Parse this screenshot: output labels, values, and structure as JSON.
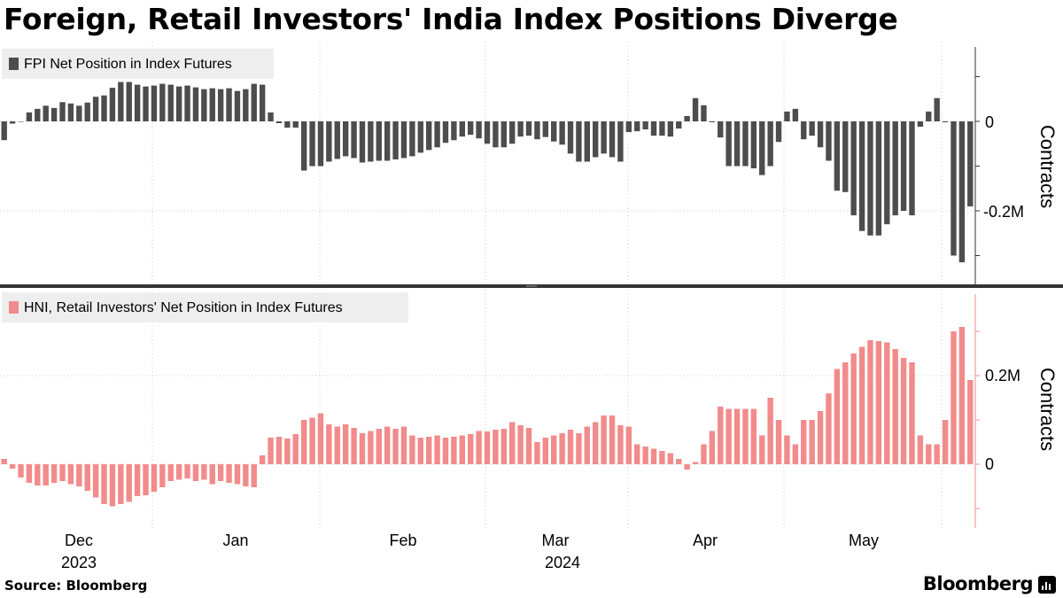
{
  "title": "Foreign, Retail Investors' India Index Positions Diverge",
  "source": "Source: Bloomberg",
  "brand": "Bloomberg",
  "colors": {
    "fpi": "#4d4d4d",
    "hni": "#f28b8b",
    "divider": "#333333",
    "grid": "#cccccc"
  },
  "chart_data": [
    {
      "type": "bar",
      "title": "FPI Net Position in Index Futures",
      "ylabel": "Contracts",
      "ylim": [
        -0.32,
        0.16
      ],
      "yticks": [
        0,
        -0.2
      ],
      "ytick_labels": [
        "0",
        "-0.2M"
      ],
      "units": "million contracts",
      "xticks": [
        "Dec",
        "Jan",
        "Feb",
        "Mar",
        "Apr",
        "May"
      ],
      "xtick_years": [
        "2023",
        "",
        "",
        "2024",
        "",
        ""
      ],
      "values": [
        -0.042,
        -0.005,
        0.0,
        0.02,
        0.028,
        0.035,
        0.03,
        0.043,
        0.04,
        0.035,
        0.042,
        0.055,
        0.058,
        0.075,
        0.088,
        0.088,
        0.082,
        0.078,
        0.08,
        0.084,
        0.082,
        0.078,
        0.08,
        0.076,
        0.072,
        0.074,
        0.072,
        0.074,
        0.068,
        0.072,
        0.084,
        0.082,
        0.02,
        -0.004,
        -0.014,
        -0.014,
        -0.11,
        -0.1,
        -0.1,
        -0.09,
        -0.084,
        -0.078,
        -0.082,
        -0.092,
        -0.09,
        -0.088,
        -0.088,
        -0.085,
        -0.082,
        -0.078,
        -0.07,
        -0.064,
        -0.058,
        -0.048,
        -0.042,
        -0.034,
        -0.03,
        -0.038,
        -0.05,
        -0.058,
        -0.058,
        -0.05,
        -0.034,
        -0.032,
        -0.04,
        -0.035,
        -0.045,
        -0.052,
        -0.072,
        -0.09,
        -0.09,
        -0.08,
        -0.072,
        -0.08,
        -0.09,
        -0.024,
        -0.022,
        -0.018,
        -0.032,
        -0.032,
        -0.034,
        -0.016,
        0.012,
        0.052,
        0.036,
        -0.002,
        -0.036,
        -0.1,
        -0.1,
        -0.1,
        -0.105,
        -0.12,
        -0.1,
        -0.046,
        0.022,
        0.028,
        -0.04,
        -0.032,
        -0.058,
        -0.088,
        -0.155,
        -0.158,
        -0.21,
        -0.245,
        -0.255,
        -0.255,
        -0.23,
        -0.21,
        -0.2,
        -0.21,
        -0.012,
        0.022,
        0.052,
        -0.002,
        -0.3,
        -0.315,
        -0.19
      ]
    },
    {
      "type": "bar",
      "title": "HNI, Retail Investors' Net Position in Index Futures",
      "ylabel": "Contracts",
      "ylim": [
        -0.115,
        0.38
      ],
      "yticks": [
        0.2,
        0
      ],
      "ytick_labels": [
        "0.2M",
        "0"
      ],
      "units": "million contracts",
      "xticks": [
        "Dec",
        "Jan",
        "Feb",
        "Mar",
        "Apr",
        "May"
      ],
      "xtick_years": [
        "2023",
        "",
        "",
        "2024",
        "",
        ""
      ],
      "values": [
        0.012,
        -0.01,
        -0.03,
        -0.042,
        -0.048,
        -0.048,
        -0.042,
        -0.038,
        -0.045,
        -0.05,
        -0.06,
        -0.075,
        -0.09,
        -0.095,
        -0.09,
        -0.085,
        -0.072,
        -0.07,
        -0.062,
        -0.052,
        -0.038,
        -0.035,
        -0.032,
        -0.038,
        -0.035,
        -0.045,
        -0.038,
        -0.042,
        -0.045,
        -0.05,
        -0.052,
        0.02,
        0.06,
        0.062,
        0.058,
        0.068,
        0.1,
        0.105,
        0.115,
        0.09,
        0.085,
        0.09,
        0.082,
        0.07,
        0.075,
        0.08,
        0.085,
        0.08,
        0.085,
        0.065,
        0.06,
        0.062,
        0.065,
        0.06,
        0.062,
        0.065,
        0.068,
        0.075,
        0.074,
        0.078,
        0.08,
        0.095,
        0.088,
        0.082,
        0.05,
        0.06,
        0.065,
        0.07,
        0.078,
        0.07,
        0.085,
        0.095,
        0.11,
        0.11,
        0.088,
        0.085,
        0.045,
        0.04,
        0.035,
        0.03,
        0.025,
        0.012,
        -0.012,
        0.005,
        0.045,
        0.075,
        0.13,
        0.125,
        0.125,
        0.125,
        0.125,
        0.065,
        0.15,
        0.1,
        0.065,
        0.045,
        0.1,
        0.1,
        0.12,
        0.16,
        0.215,
        0.23,
        0.25,
        0.265,
        0.28,
        0.278,
        0.275,
        0.26,
        0.24,
        0.23,
        0.065,
        0.045,
        0.045,
        0.1,
        0.3,
        0.31,
        0.19
      ]
    }
  ]
}
